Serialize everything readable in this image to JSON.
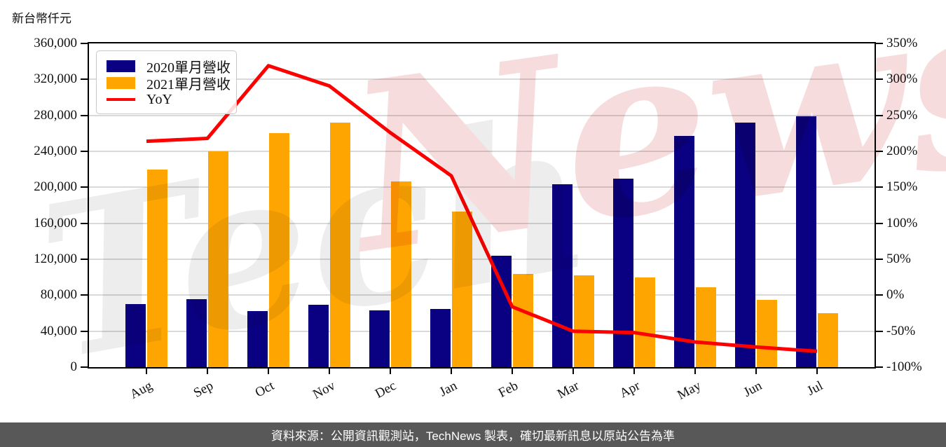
{
  "chart_data": {
    "type": "bar",
    "title": "",
    "ylabel": "新台幣仟元",
    "xlabel": "",
    "categories": [
      "Aug",
      "Sep",
      "Oct",
      "Nov",
      "Dec",
      "Jan",
      "Feb",
      "Mar",
      "Apr",
      "May",
      "Jun",
      "Jul"
    ],
    "series": [
      {
        "name": "2020單月營收",
        "color": "#0a0082",
        "axis": "left",
        "values": [
          70000,
          75500,
          62000,
          69500,
          63300,
          65000,
          124000,
          203000,
          210000,
          257000,
          272000,
          279000
        ]
      },
      {
        "name": "2021單月營收",
        "color": "#ffa502",
        "axis": "left",
        "values": [
          220000,
          240000,
          260000,
          272000,
          206500,
          173000,
          104000,
          102000,
          100000,
          89000,
          75000,
          60000
        ]
      }
    ],
    "line_series": {
      "name": "YoY",
      "color": "#ff0000",
      "axis": "right",
      "unit": "%",
      "values": [
        214,
        218,
        319,
        291,
        226,
        166,
        -16,
        -50,
        -52,
        -65,
        -72,
        -78
      ]
    },
    "left_axis": {
      "min": 0,
      "max": 360000,
      "step": 40000,
      "tick_labels": [
        "360,000",
        "320,000",
        "280,000",
        "240,000",
        "200,000",
        "160,000",
        "120,000",
        "80,000",
        "40,000",
        "0"
      ]
    },
    "right_axis": {
      "min": -100,
      "max": 350,
      "step": 50,
      "tick_labels": [
        "350%",
        "300%",
        "250%",
        "200%",
        "150%",
        "100%",
        "50%",
        "0%",
        "-50%",
        "-100%"
      ]
    },
    "grid": true,
    "legend_position": "upper-left",
    "legend": [
      "2020單月營收",
      "2021單月營收",
      "YoY"
    ]
  },
  "watermark": {
    "part1": "Tech",
    "part2": "News",
    "color1": "#ededed",
    "color2": "#f6dcdc"
  },
  "footer": {
    "text": "資料來源：公開資訊觀測站，TechNews 製表，確切最新訊息以原站公告為準",
    "background": "#585858"
  }
}
